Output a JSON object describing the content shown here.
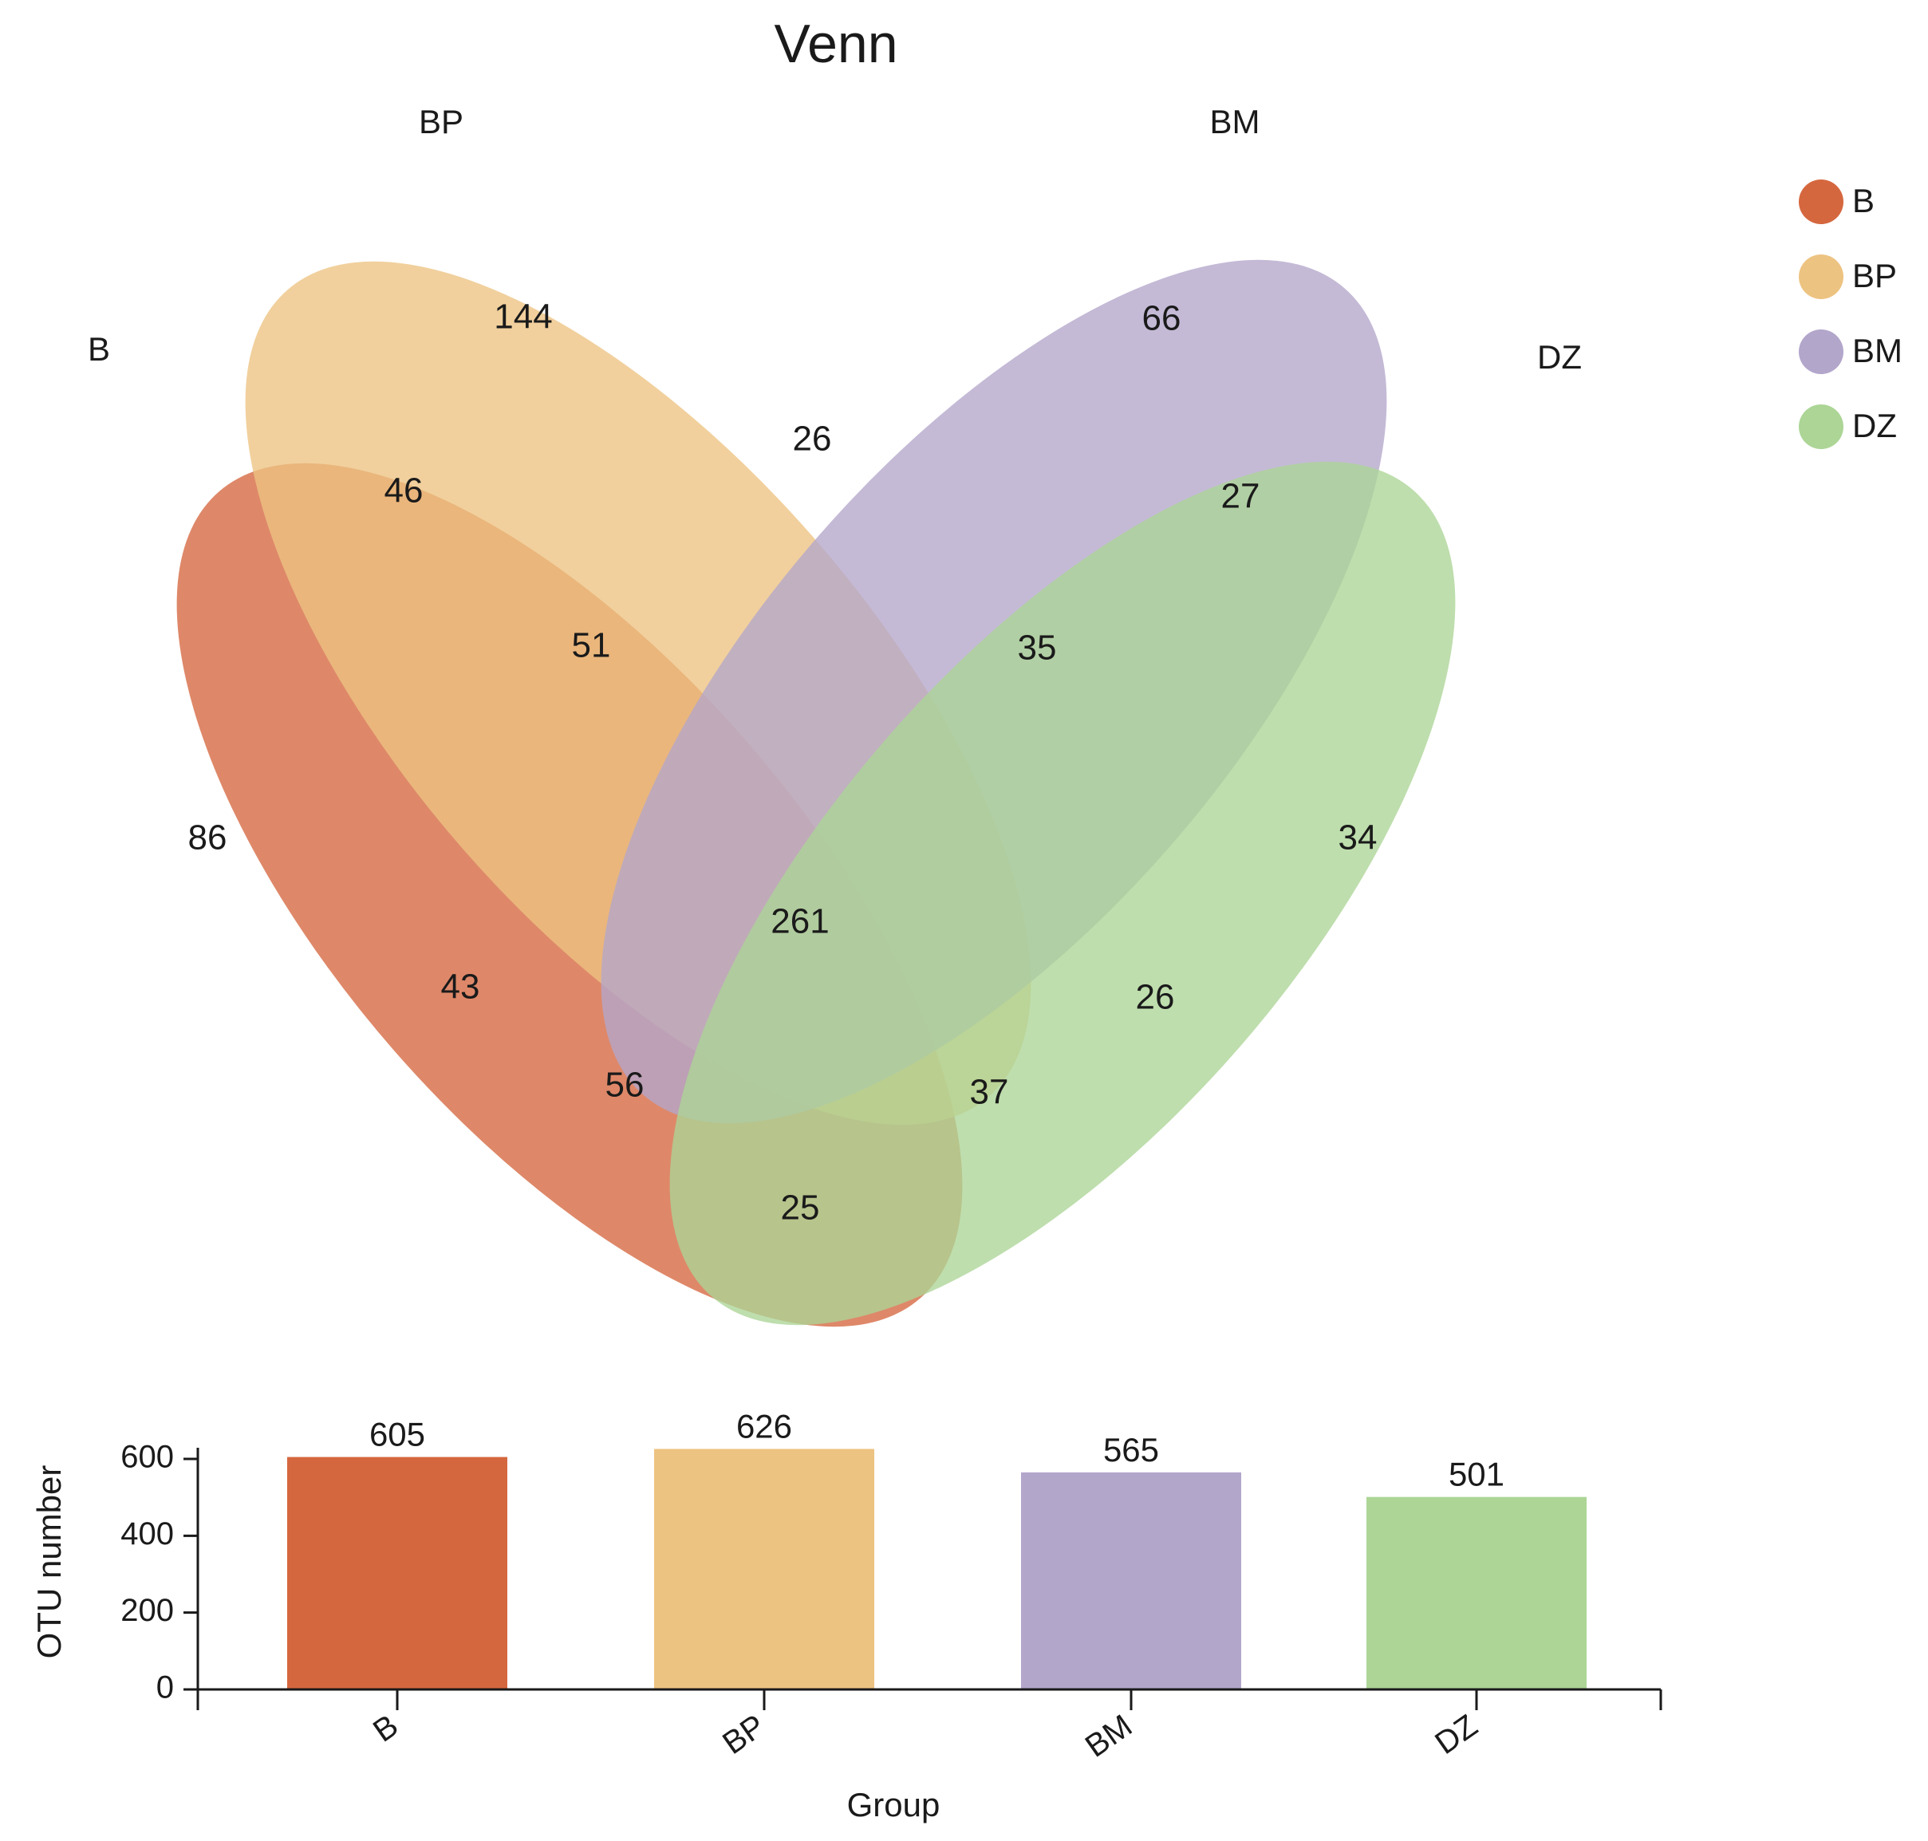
{
  "chart_data": [
    {
      "type": "venn",
      "title": "Venn",
      "sets": [
        {
          "name": "B",
          "color": "#d5673f"
        },
        {
          "name": "BP",
          "color": "#edc381"
        },
        {
          "name": "BM",
          "color": "#b3a6cb"
        },
        {
          "name": "DZ",
          "color": "#acd596"
        }
      ],
      "regions": [
        {
          "sets": [
            "B"
          ],
          "value": 86
        },
        {
          "sets": [
            "BP"
          ],
          "value": 144
        },
        {
          "sets": [
            "BM"
          ],
          "value": 66
        },
        {
          "sets": [
            "DZ"
          ],
          "value": 34
        },
        {
          "sets": [
            "B",
            "BP"
          ],
          "value": 46
        },
        {
          "sets": [
            "BP",
            "BM"
          ],
          "value": 26
        },
        {
          "sets": [
            "BM",
            "DZ"
          ],
          "value": 27
        },
        {
          "sets": [
            "B",
            "BP",
            "BM"
          ],
          "value": 51
        },
        {
          "sets": [
            "BP",
            "BM",
            "DZ"
          ],
          "value": 35
        },
        {
          "sets": [
            "B",
            "BP",
            "BM",
            "DZ"
          ],
          "value": 261
        },
        {
          "sets": [
            "B",
            "BM"
          ],
          "value": 43
        },
        {
          "sets": [
            "BP",
            "DZ"
          ],
          "value": 26
        },
        {
          "sets": [
            "B",
            "BM",
            "DZ"
          ],
          "value": 56
        },
        {
          "sets": [
            "B",
            "BP",
            "DZ"
          ],
          "value": 37
        },
        {
          "sets": [
            "B",
            "DZ"
          ],
          "value": 25
        }
      ],
      "legend": [
        "B",
        "BP",
        "BM",
        "DZ"
      ],
      "legend_position": "top-right"
    },
    {
      "type": "bar",
      "categories": [
        "B",
        "BP",
        "BM",
        "DZ"
      ],
      "values": [
        605,
        626,
        565,
        501
      ],
      "colors": [
        "#d5673f",
        "#edc381",
        "#b3a6cb",
        "#acd596"
      ],
      "xlabel": "Group",
      "ylabel": "OTU number",
      "ylim": [
        0,
        600
      ],
      "yticks": [
        0,
        200,
        400,
        600
      ],
      "grid": false
    }
  ]
}
